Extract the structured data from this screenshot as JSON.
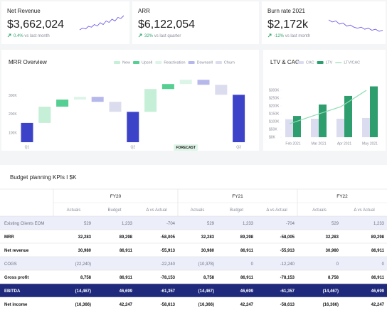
{
  "kpis": [
    {
      "label": "Net Revenue",
      "value": "$3,662,024",
      "change": "0.4%",
      "note": "vs last month",
      "trend": [
        2,
        3,
        2.5,
        4,
        3.5,
        5,
        4.2,
        6,
        5,
        7,
        6.2,
        8,
        7,
        9,
        8.4,
        10
      ]
    },
    {
      "label": "ARR",
      "value": "$6,122,054",
      "change": "32%",
      "note": "vs last quarter"
    },
    {
      "label": "Burn rate 2021",
      "value": "$2,172k",
      "change": "-12%",
      "note": "vs last month",
      "trend": [
        9,
        8,
        8.5,
        7,
        7.5,
        6,
        6.5,
        5.5,
        5,
        5.5,
        4.5,
        5,
        4,
        4.5,
        3.5,
        4
      ]
    }
  ],
  "chart_data": [
    {
      "type": "waterfall",
      "title": "MRR Overview",
      "categories": [
        "Q1",
        null,
        null,
        null,
        null,
        null,
        "Q2",
        null,
        null,
        null,
        null,
        null,
        "Q3"
      ],
      "series": [
        {
          "color": "#3d43c8",
          "values": [
            154000,
            null,
            null,
            null,
            null,
            null,
            214000,
            null,
            null,
            null,
            null,
            null,
            306000
          ]
        },
        {
          "name": "New",
          "color": "#c6efd8",
          "values": [
            null,
            88000,
            null,
            null,
            null,
            null,
            null,
            123000,
            null,
            null,
            null,
            null,
            null
          ]
        },
        {
          "name": "Upsell",
          "color": "#55cf92",
          "values": [
            null,
            null,
            38000,
            null,
            null,
            null,
            null,
            null,
            27000,
            null,
            null,
            null,
            null
          ]
        },
        {
          "name": "Reactivation",
          "color": "#dcf5e8",
          "values": [
            null,
            null,
            null,
            15000,
            null,
            null,
            null,
            null,
            null,
            23000,
            null,
            null,
            null
          ]
        },
        {
          "name": "Downsell",
          "color": "#b6b8ec",
          "values": [
            null,
            null,
            null,
            null,
            -27000,
            null,
            null,
            null,
            null,
            null,
            -27000,
            null,
            null
          ]
        },
        {
          "name": "Churn",
          "color": "#dcdcef",
          "values": [
            null,
            null,
            null,
            null,
            null,
            -54000,
            null,
            null,
            null,
            null,
            null,
            -54000,
            null
          ]
        }
      ],
      "ylim": [
        50000,
        430000
      ],
      "yticks": [
        {
          "value": 100000,
          "label": "100K"
        },
        {
          "value": 200000,
          "label": "200K"
        },
        {
          "value": 300000,
          "label": "300K"
        }
      ],
      "annotation": "FORECAST"
    },
    {
      "type": "combo",
      "title": "LTV & CAC",
      "categories": [
        "Feb 2021",
        "Mar 2021",
        "Apr 2021",
        "May 2021"
      ],
      "series": [
        {
          "name": "CAC",
          "type": "bar",
          "color": "#dcdcf0",
          "values": [
            115000,
            118000,
            118000,
            123000
          ]
        },
        {
          "name": "LTV",
          "type": "bar",
          "color": "#2e9e6e",
          "values": [
            136000,
            209000,
            264000,
            325000
          ]
        },
        {
          "name": "LTV/CAC",
          "type": "line",
          "color": "#8fdcb3",
          "values": [
            86000,
            141000,
            195000,
            300000
          ]
        }
      ],
      "ylim": [
        0,
        350000
      ],
      "yticks": [
        {
          "value": 0,
          "label": "$0K"
        },
        {
          "value": 50000,
          "label": "$50K"
        },
        {
          "value": 100000,
          "label": "$100K"
        },
        {
          "value": 150000,
          "label": "$150K"
        },
        {
          "value": 200000,
          "label": "$200K"
        },
        {
          "value": 250000,
          "label": "$250K"
        },
        {
          "value": 300000,
          "label": "$300K"
        }
      ]
    }
  ],
  "table": {
    "title": "Budget planning KPIs I $K",
    "groups": [
      "FY20",
      "FY21",
      "FY22"
    ],
    "columns": [
      "Actuals",
      "Budget",
      "Δ vs Actual",
      "Actuals",
      "Budget",
      "Δ vs Actual",
      "Actuals",
      "Δ vs Actual"
    ],
    "rows": [
      [
        "Existing Clients EOM",
        "529",
        "1,233",
        "-704",
        "529",
        "1,233",
        "-704",
        "529",
        "1,233"
      ],
      [
        "MRR",
        "32,283",
        "89,298",
        "-58,005",
        "32,283",
        "89,298",
        "-58,005",
        "32,283",
        "89,298"
      ],
      [
        "Net revenue",
        "30,980",
        "86,911",
        "-55,913",
        "30,980",
        "86,911",
        "-55,913",
        "30,980",
        "86,911"
      ],
      [
        "COGS",
        "(22,240)",
        null,
        "-22,240",
        "(10,378)",
        "0",
        "-12,240",
        "0",
        "0"
      ],
      [
        "Gross profit",
        "8,758",
        "86,911",
        "-78,153",
        "8,758",
        "86,911",
        "-78,153",
        "8,758",
        "86,911"
      ],
      [
        "EBITDA",
        "(14,467)",
        "46,699",
        "-61,357",
        "(14,467)",
        "46,699",
        "-61,357",
        "(14,467)",
        "46,699"
      ],
      [
        "Net income",
        "(16,366)",
        "42,247",
        "-58,613",
        "(16,366)",
        "42,247",
        "-58,613",
        "(16,366)",
        "42,247"
      ]
    ]
  }
}
